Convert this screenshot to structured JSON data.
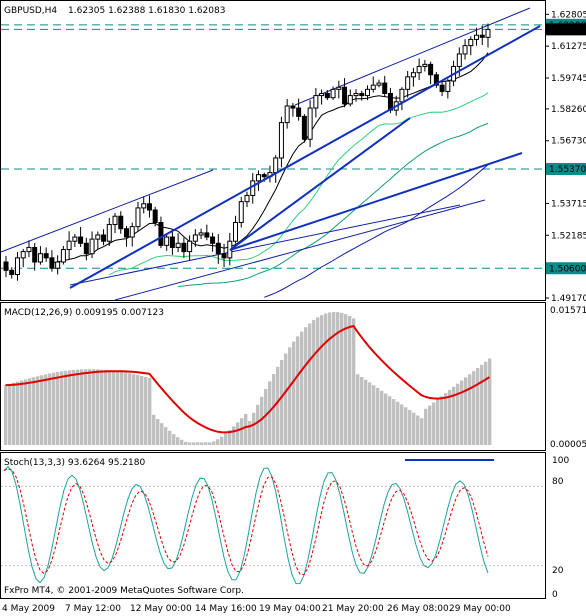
{
  "main": {
    "symbol_tf": "GBPUSD,H4",
    "ohlc": "1.62305 1.62388 1.61830 1.62083",
    "price_ticks": [
      "1.62805",
      "1.61275",
      "1.59745",
      "1.58260",
      "1.56730",
      "1.55370",
      "1.53715",
      "1.52185",
      "1.50600",
      "1.49170"
    ],
    "price_labels": [
      {
        "text": "1.62300",
        "price": 1.623,
        "bg": "#0f8a8a",
        "fg": "#ffffff"
      },
      {
        "text": "1.62083",
        "price": 1.62083,
        "bg": "#000000",
        "fg": "#ffffff"
      },
      {
        "text": "1.55370",
        "price": 1.5537,
        "bg": "#0f8a8a",
        "fg": "#ffffff"
      },
      {
        "text": "1.50600",
        "price": 1.506,
        "bg": "#0f8a8a",
        "fg": "#ffffff"
      }
    ]
  },
  "macd": {
    "label": "MACD(12,26,9) 0.009195 0.007123",
    "tick_top": "0.015715",
    "tick_bottom": "0.000051",
    "histogram_color": "#c0c0c0",
    "signal_color": "#e00000"
  },
  "stoch": {
    "label": "Stoch(13,3,3) 93.6264 95.2180",
    "ticks": [
      "100",
      "80",
      "20",
      "0"
    ],
    "main_color": "#20a0a0",
    "signal_color": "#e00000"
  },
  "copyright": "FxPro MT4, © 2001-2009 MetaQuotes Software Corp.",
  "time_axis": [
    "4 May 2009",
    "7 May 12:00",
    "12 May 00:00",
    "14 May 16:00",
    "19 May 04:00",
    "21 May 20:00",
    "26 May 08:00",
    "29 May 00:00"
  ],
  "colors": {
    "trendline": "#1030c0",
    "channel": "#1020a0",
    "ma_fast": "#000000",
    "ma_mid": "#30d080",
    "ma_slow": "#10a070",
    "ma_long": "#1020a0",
    "hline": "#0f8a8a"
  },
  "chart_data": {
    "type": "candlestick",
    "ohlc_last": {
      "open": 1.62305,
      "high": 1.62388,
      "low": 1.6183,
      "close": 1.62083
    },
    "ylim": [
      1.4917,
      1.6335
    ],
    "closes": [
      1.505,
      1.503,
      1.511,
      1.514,
      1.516,
      1.509,
      1.513,
      1.511,
      1.506,
      1.509,
      1.515,
      1.519,
      1.521,
      1.518,
      1.513,
      1.52,
      1.522,
      1.519,
      1.527,
      1.531,
      1.525,
      1.521,
      1.526,
      1.535,
      1.537,
      1.534,
      1.528,
      1.517,
      1.521,
      1.516,
      1.518,
      1.514,
      1.519,
      1.522,
      1.523,
      1.521,
      1.518,
      1.513,
      1.511,
      1.519,
      1.528,
      1.538,
      1.541,
      1.548,
      1.551,
      1.55,
      1.552,
      1.559,
      1.576,
      1.584,
      1.583,
      1.579,
      1.568,
      1.583,
      1.589,
      1.59,
      1.588,
      1.592,
      1.593,
      1.585,
      1.589,
      1.59,
      1.589,
      1.592,
      1.594,
      1.595,
      1.59,
      1.582,
      1.586,
      1.592,
      1.598,
      1.6,
      1.603,
      1.604,
      1.599,
      1.594,
      1.591,
      1.596,
      1.603,
      1.609,
      1.613,
      1.616,
      1.618,
      1.617,
      1.6208
    ]
  }
}
